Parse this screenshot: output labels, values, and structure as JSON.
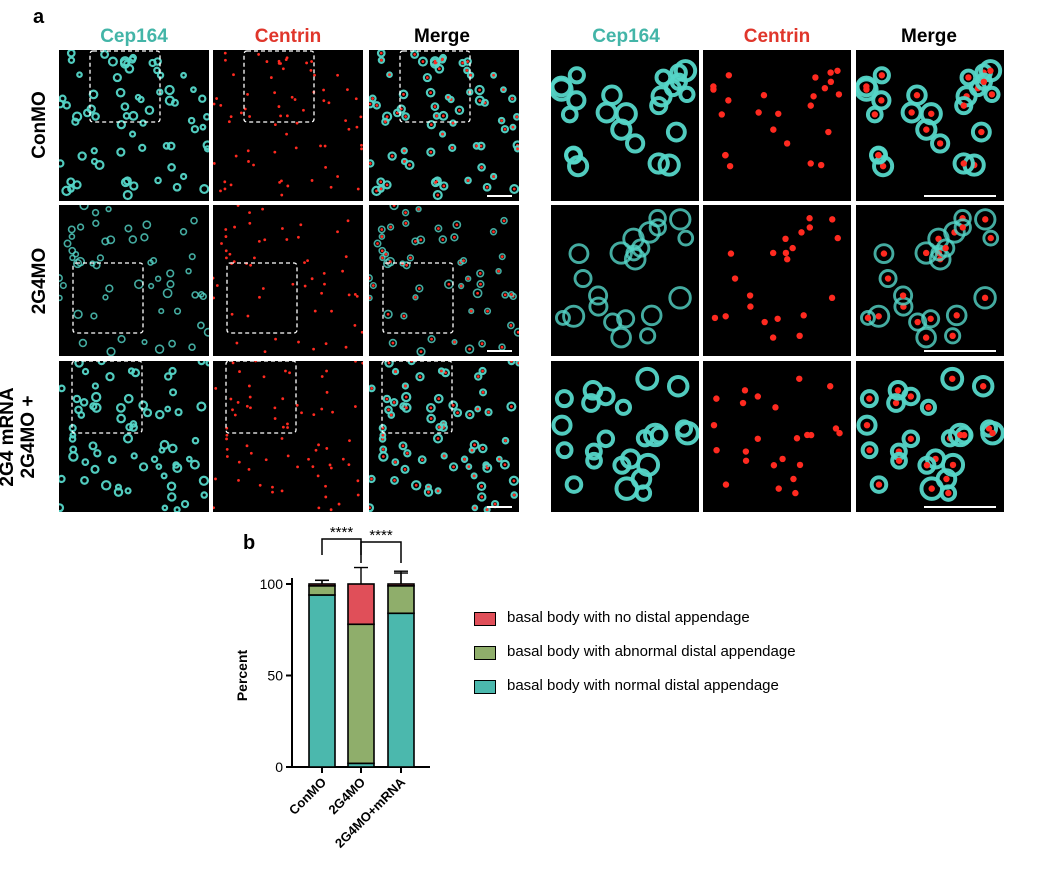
{
  "panel_a": {
    "letter": "a",
    "column_headers": [
      "Cep164",
      "Centrin",
      "Merge",
      "Cep164",
      "Centrin",
      "Merge"
    ],
    "header_colors": {
      "cep164": "#43b5a8",
      "centrin": "#e0362b",
      "merge": "#000000"
    },
    "row_labels": [
      "ConMO",
      "2G4MO",
      "2G4MO +",
      "2G4 mRNA"
    ]
  },
  "chart_data": {
    "type": "bar",
    "panel_letter": "b",
    "stacked": true,
    "categories": [
      "ConMO",
      "2G4MO",
      "2G4MO+mRNA"
    ],
    "series": [
      {
        "name": "basal body with normal distal appendage",
        "color": "#4bb8ad",
        "values": [
          94,
          2,
          84
        ],
        "err": [
          0,
          3,
          0
        ]
      },
      {
        "name": "basal body with abnormal distal appendage",
        "color": "#8fae6b",
        "values": [
          5,
          76,
          15
        ],
        "err": [
          3,
          9,
          8
        ]
      },
      {
        "name": "basal body with no distal appendage",
        "color": "#e04f59",
        "values": [
          1,
          22,
          1
        ],
        "err": [
          2,
          9,
          6
        ]
      }
    ],
    "ylabel": "Percent",
    "ylim": [
      0,
      100
    ],
    "yticks": [
      0,
      50,
      100
    ],
    "significance": [
      {
        "from": 0,
        "to": 1,
        "label": "****"
      },
      {
        "from": 1,
        "to": 2,
        "label": "****"
      }
    ],
    "legend_position": "right"
  }
}
